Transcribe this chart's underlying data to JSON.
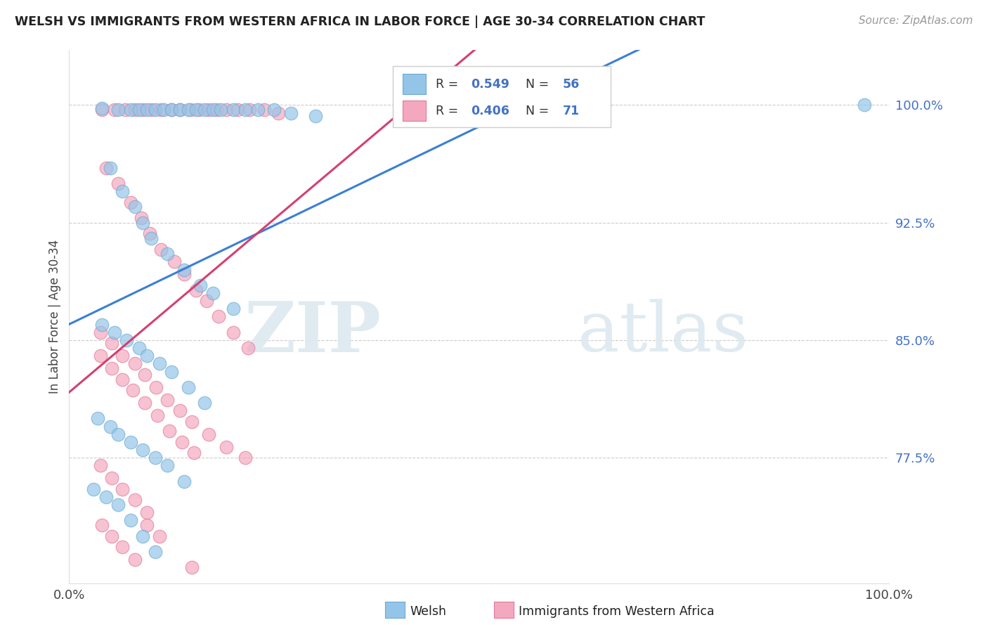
{
  "title": "WELSH VS IMMIGRANTS FROM WESTERN AFRICA IN LABOR FORCE | AGE 30-34 CORRELATION CHART",
  "source": "Source: ZipAtlas.com",
  "ylabel": "In Labor Force | Age 30-34",
  "ytick_labels": [
    "77.5%",
    "85.0%",
    "92.5%",
    "100.0%"
  ],
  "ytick_values": [
    0.775,
    0.85,
    0.925,
    1.0
  ],
  "xtick_labels": [
    "0.0%",
    "100.0%"
  ],
  "xtick_values": [
    0.0,
    1.0
  ],
  "xlim": [
    0.0,
    1.0
  ],
  "ylim": [
    0.695,
    1.035
  ],
  "welsh_color": "#94c5e8",
  "welsh_edge": "#6aaad4",
  "africa_color": "#f4a8c0",
  "africa_edge": "#e07898",
  "welsh_R": 0.549,
  "welsh_N": 56,
  "africa_R": 0.406,
  "africa_N": 71,
  "welsh_line_color": "#3b7fd4",
  "africa_line_color": "#d44070",
  "legend_label_welsh": "Welsh",
  "legend_label_africa": "Immigrants from Western Africa",
  "watermark_part1": "ZIP",
  "watermark_part2": "atlas"
}
